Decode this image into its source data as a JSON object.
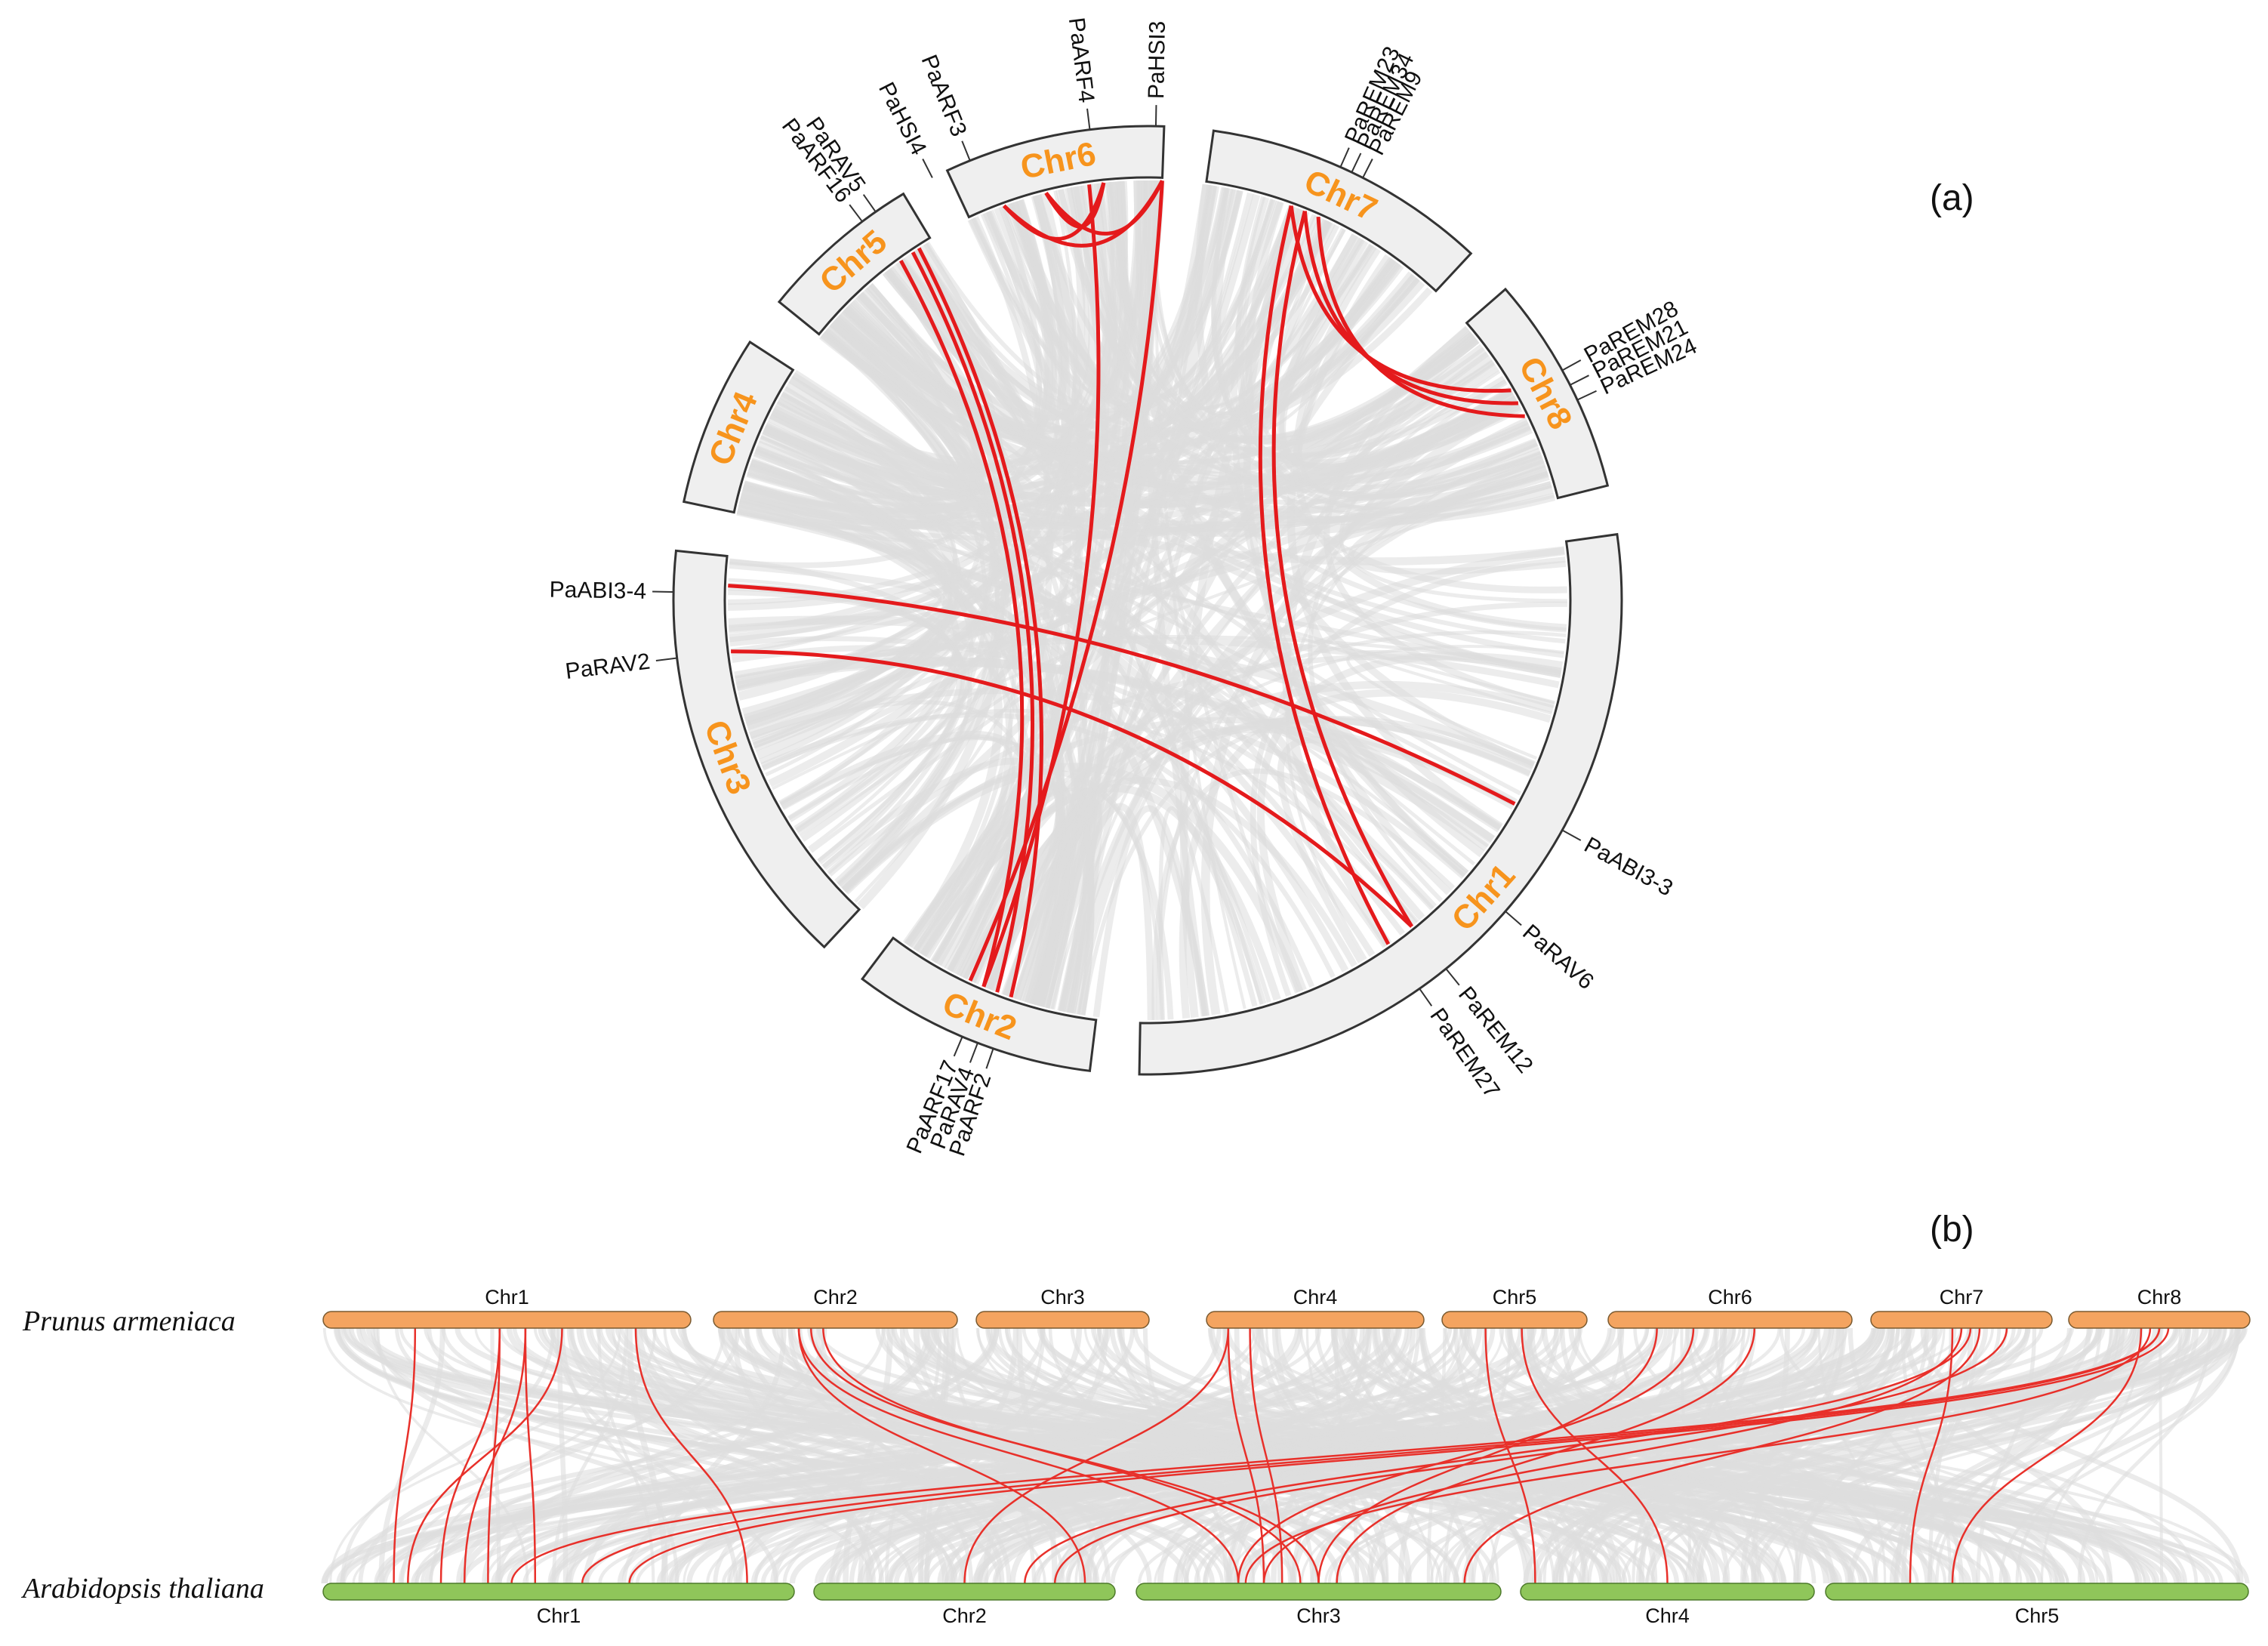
{
  "panel_a": {
    "label": "(a)",
    "chromosomes": [
      {
        "name": "Chr1",
        "start": 82,
        "end": 181
      },
      {
        "name": "Chr2",
        "start": 187,
        "end": 217
      },
      {
        "name": "Chr3",
        "start": 223,
        "end": 276
      },
      {
        "name": "Chr4",
        "start": 282,
        "end": 303
      },
      {
        "name": "Chr5",
        "start": 309,
        "end": 329
      },
      {
        "name": "Chr6",
        "start": 335,
        "end": 2
      },
      {
        "name": "Chr7",
        "start": 8,
        "end": 43
      },
      {
        "name": "Chr8",
        "start": 49,
        "end": 76
      }
    ],
    "genes": [
      {
        "name": "PaHSI3",
        "angle": 1
      },
      {
        "name": "PaARF4",
        "angle": 353
      },
      {
        "name": "PaARF3",
        "angle": 338
      },
      {
        "name": "PaHSI4",
        "angle": 333
      },
      {
        "name": "PaRAV5",
        "angle": 325
      },
      {
        "name": "PaARF16",
        "angle": 323
      },
      {
        "name": "PaREM23",
        "angle": 24
      },
      {
        "name": "PaREM34",
        "angle": 25.5
      },
      {
        "name": "PaREM9",
        "angle": 27
      },
      {
        "name": "PaREM28",
        "angle": 61
      },
      {
        "name": "PaREM21",
        "angle": 63
      },
      {
        "name": "PaREM24",
        "angle": 65
      },
      {
        "name": "PaABI3-3",
        "angle": 119
      },
      {
        "name": "PaRAV6",
        "angle": 131
      },
      {
        "name": "PaREM12",
        "angle": 141
      },
      {
        "name": "PaREM27",
        "angle": 145
      },
      {
        "name": "PaARF2",
        "angle": 199
      },
      {
        "name": "PaRAV4",
        "angle": 201
      },
      {
        "name": "PaARF17",
        "angle": 203
      },
      {
        "name": "PaABI3-4",
        "angle": 271
      },
      {
        "name": "PaRAV2",
        "angle": 263
      }
    ],
    "red_links": [
      [
        340,
        354
      ],
      [
        346,
        354
      ],
      [
        340,
        2
      ],
      [
        346,
        2
      ],
      [
        326,
        201
      ],
      [
        327,
        199
      ],
      [
        352,
        203
      ],
      [
        2,
        205
      ],
      [
        20,
        60
      ],
      [
        22,
        62
      ],
      [
        24,
        64
      ],
      [
        20,
        145
      ],
      [
        22,
        141
      ],
      [
        272,
        119
      ],
      [
        263,
        141
      ],
      [
        324,
        203
      ]
    ],
    "gray_link_color": "#dcdcdc",
    "red_link_color": "#e41a1c"
  },
  "panel_b": {
    "label": "(b)",
    "species_top": "Prunus armeniaca",
    "species_bottom": "Arabidopsis thaliana",
    "top_chromosomes": [
      "Chr1",
      "Chr2",
      "Chr3",
      "Chr4",
      "Chr5",
      "Chr6",
      "Chr7",
      "Chr8"
    ],
    "bottom_chromosomes": [
      "Chr1",
      "Chr2",
      "Chr3",
      "Chr4",
      "Chr5"
    ],
    "top_color": "#f4a460",
    "bottom_color": "#8fc65a",
    "red_links": [
      [
        0.48,
        0.25
      ],
      [
        0.48,
        0.35
      ],
      [
        0.55,
        0.45
      ],
      [
        0.55,
        0.3
      ],
      [
        0.65,
        0.18
      ],
      [
        0.25,
        0.15
      ],
      [
        0.85,
        0.9
      ],
      [
        1.35,
        1.9
      ],
      [
        1.35,
        2.28
      ],
      [
        1.4,
        2.5
      ],
      [
        1.45,
        2.45
      ],
      [
        3.1,
        2.35
      ],
      [
        3.1,
        1.5
      ],
      [
        3.2,
        2.4
      ],
      [
        4.3,
        3.05
      ],
      [
        4.55,
        3.5
      ],
      [
        5.2,
        2.5
      ],
      [
        5.35,
        2.28
      ],
      [
        5.6,
        2.55
      ],
      [
        6.45,
        4.2
      ],
      [
        6.5,
        2.35
      ],
      [
        6.55,
        1.7
      ],
      [
        6.6,
        2.9
      ],
      [
        6.75,
        1.8
      ],
      [
        7.5,
        0.55
      ],
      [
        7.5,
        0.4
      ],
      [
        7.45,
        2.3
      ],
      [
        7.4,
        4.3
      ],
      [
        7.55,
        0.65
      ]
    ]
  }
}
